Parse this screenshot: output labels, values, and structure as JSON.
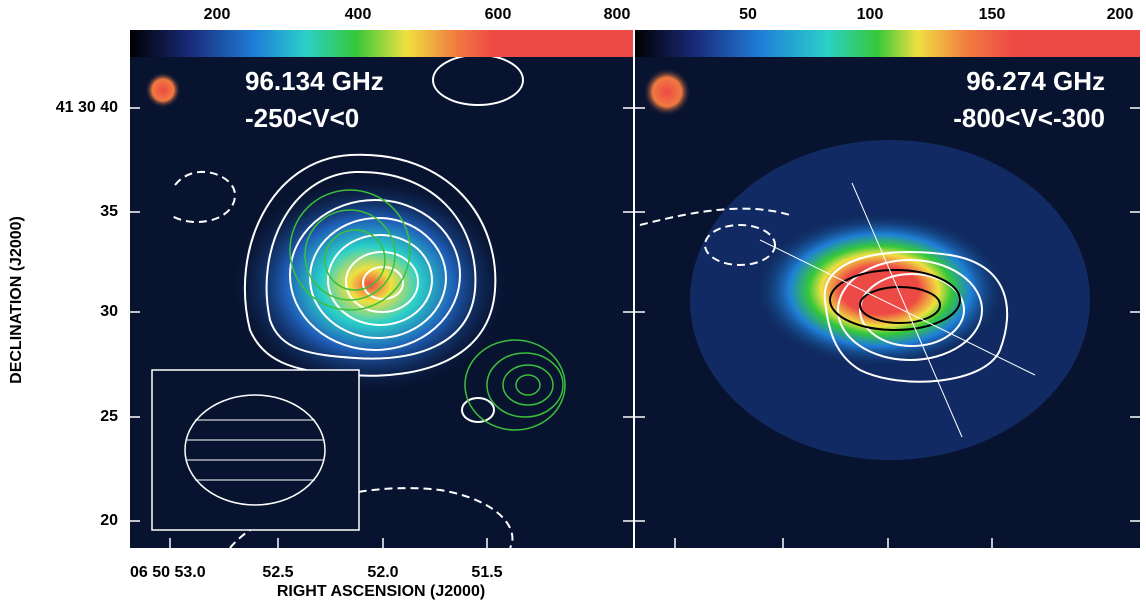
{
  "panels": [
    {
      "line": "96.134 GHz",
      "velocity": "-250<V<0",
      "colorbar_ticks": [
        "200",
        "400",
        "600",
        "800"
      ]
    },
    {
      "line": "96.274 GHz",
      "velocity": "-800<V<-300",
      "colorbar_ticks": [
        "50",
        "100",
        "150",
        "200"
      ]
    }
  ],
  "y_axis": {
    "label": "DECLINATION (J2000)",
    "ticks": [
      "41 30 40",
      "35",
      "30",
      "25",
      "20"
    ]
  },
  "x_axis": {
    "label": "RIGHT ASCENSION (J2000)",
    "ticks": [
      "06 50 53.0",
      "52.5",
      "52.0",
      "51.5"
    ]
  }
}
